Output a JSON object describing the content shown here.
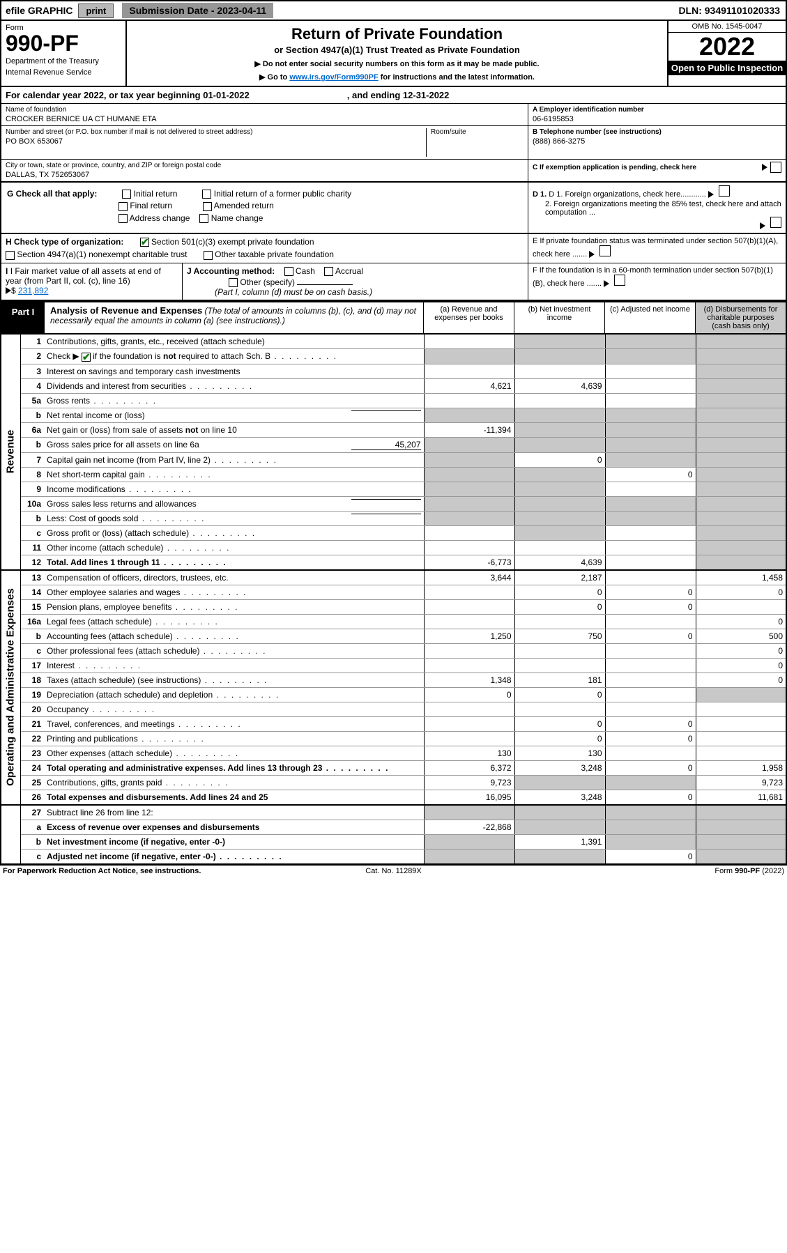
{
  "topbar": {
    "efile": "efile GRAPHIC",
    "print": "print",
    "subdate_label": "Submission Date - 2023-04-11",
    "dln": "DLN: 93491101020333"
  },
  "header": {
    "form_label": "Form",
    "form_num": "990-PF",
    "dept1": "Department of the Treasury",
    "dept2": "Internal Revenue Service",
    "title": "Return of Private Foundation",
    "subtitle": "or Section 4947(a)(1) Trust Treated as Private Foundation",
    "instr1": "▶ Do not enter social security numbers on this form as it may be made public.",
    "instr2_pre": "▶ Go to ",
    "instr2_link": "www.irs.gov/Form990PF",
    "instr2_post": " for instructions and the latest information.",
    "omb": "OMB No. 1545-0047",
    "year": "2022",
    "open": "Open to Public Inspection"
  },
  "calendar": {
    "text1": "For calendar year 2022, or tax year beginning 01-01-2022",
    "text2": ", and ending 12-31-2022"
  },
  "info": {
    "name_lbl": "Name of foundation",
    "name": "CROCKER BERNICE UA CT HUMANE ETA",
    "addr_lbl": "Number and street (or P.O. box number if mail is not delivered to street address)",
    "addr": "PO BOX 653067",
    "room_lbl": "Room/suite",
    "city_lbl": "City or town, state or province, country, and ZIP or foreign postal code",
    "city": "DALLAS, TX  752653067",
    "a_lbl": "A Employer identification number",
    "a_val": "06-6195853",
    "b_lbl": "B Telephone number (see instructions)",
    "b_val": "(888) 866-3275",
    "c_lbl": "C If exemption application is pending, check here"
  },
  "checks": {
    "g_lbl": "G Check all that apply:",
    "g_initial": "Initial return",
    "g_initial_former": "Initial return of a former public charity",
    "g_final": "Final return",
    "g_amended": "Amended return",
    "g_addr": "Address change",
    "g_name": "Name change",
    "h_lbl": "H Check type of organization:",
    "h_501c3": "Section 501(c)(3) exempt private foundation",
    "h_4947": "Section 4947(a)(1) nonexempt charitable trust",
    "h_other": "Other taxable private foundation",
    "i_lbl": "I Fair market value of all assets at end of year (from Part II, col. (c), line 16)",
    "i_val": "231,892",
    "j_lbl": "J Accounting method:",
    "j_cash": "Cash",
    "j_accrual": "Accrual",
    "j_other": "Other (specify)",
    "j_note": "(Part I, column (d) must be on cash basis.)",
    "d1": "D 1. Foreign organizations, check here............",
    "d2": "2. Foreign organizations meeting the 85% test, check here and attach computation ...",
    "e": "E  If private foundation status was terminated under section 507(b)(1)(A), check here .......",
    "f": "F  If the foundation is in a 60-month termination under section 507(b)(1)(B), check here .......",
    "arrow": "▶"
  },
  "part1": {
    "tag": "Part I",
    "title": "Analysis of Revenue and Expenses",
    "note": " (The total of amounts in columns (b), (c), and (d) may not necessarily equal the amounts in column (a) (see instructions).)",
    "col_a": "(a)   Revenue and expenses per books",
    "col_b": "(b)   Net investment income",
    "col_c": "(c)   Adjusted net income",
    "col_d": "(d)   Disbursements for charitable purposes (cash basis only)"
  },
  "sections": {
    "revenue": "Revenue",
    "opex": "Operating and Administrative Expenses"
  },
  "rows": [
    {
      "n": "1",
      "d": "Contributions, gifts, grants, etc., received (attach schedule)",
      "a": "",
      "b": "shade",
      "c": "shade",
      "dd": "shade"
    },
    {
      "n": "2",
      "d": "Check ▶ ☑ if the foundation is not required to attach Sch. B",
      "a": "shade",
      "b": "shade",
      "c": "shade",
      "dd": "shade",
      "dots": true
    },
    {
      "n": "3",
      "d": "Interest on savings and temporary cash investments",
      "a": "",
      "b": "",
      "c": "",
      "dd": "shade"
    },
    {
      "n": "4",
      "d": "Dividends and interest from securities",
      "a": "4,621",
      "b": "4,639",
      "c": "",
      "dd": "shade",
      "dots": true
    },
    {
      "n": "5a",
      "d": "Gross rents",
      "a": "",
      "b": "",
      "c": "",
      "dd": "shade",
      "dots": true
    },
    {
      "n": "b",
      "d": "Net rental income or (loss)",
      "a": "shade",
      "b": "shade",
      "c": "shade",
      "dd": "shade",
      "inline": ""
    },
    {
      "n": "6a",
      "d": "Net gain or (loss) from sale of assets not on line 10",
      "a": "-11,394",
      "b": "shade",
      "c": "shade",
      "dd": "shade"
    },
    {
      "n": "b",
      "d": "Gross sales price for all assets on line 6a",
      "a": "shade",
      "b": "shade",
      "c": "shade",
      "dd": "shade",
      "inline": "45,207"
    },
    {
      "n": "7",
      "d": "Capital gain net income (from Part IV, line 2)",
      "a": "shade",
      "b": "0",
      "c": "shade",
      "dd": "shade",
      "dots": true
    },
    {
      "n": "8",
      "d": "Net short-term capital gain",
      "a": "shade",
      "b": "shade",
      "c": "0",
      "dd": "shade",
      "dots": true
    },
    {
      "n": "9",
      "d": "Income modifications",
      "a": "shade",
      "b": "shade",
      "c": "",
      "dd": "shade",
      "dots": true
    },
    {
      "n": "10a",
      "d": "Gross sales less returns and allowances",
      "a": "shade",
      "b": "shade",
      "c": "shade",
      "dd": "shade",
      "inline": ""
    },
    {
      "n": "b",
      "d": "Less: Cost of goods sold",
      "a": "shade",
      "b": "shade",
      "c": "shade",
      "dd": "shade",
      "inline": "",
      "dots": true
    },
    {
      "n": "c",
      "d": "Gross profit or (loss) (attach schedule)",
      "a": "",
      "b": "shade",
      "c": "",
      "dd": "shade",
      "dots": true
    },
    {
      "n": "11",
      "d": "Other income (attach schedule)",
      "a": "",
      "b": "",
      "c": "",
      "dd": "shade",
      "dots": true
    },
    {
      "n": "12",
      "d": "Total. Add lines 1 through 11",
      "a": "-6,773",
      "b": "4,639",
      "c": "",
      "dd": "shade",
      "bold": true,
      "dots": true
    }
  ],
  "rows2": [
    {
      "n": "13",
      "d": "Compensation of officers, directors, trustees, etc.",
      "a": "3,644",
      "b": "2,187",
      "c": "",
      "dd": "1,458"
    },
    {
      "n": "14",
      "d": "Other employee salaries and wages",
      "a": "",
      "b": "0",
      "c": "0",
      "dd": "0",
      "dots": true
    },
    {
      "n": "15",
      "d": "Pension plans, employee benefits",
      "a": "",
      "b": "0",
      "c": "0",
      "dd": "",
      "dots": true
    },
    {
      "n": "16a",
      "d": "Legal fees (attach schedule)",
      "a": "",
      "b": "",
      "c": "",
      "dd": "0",
      "dots": true
    },
    {
      "n": "b",
      "d": "Accounting fees (attach schedule)",
      "a": "1,250",
      "b": "750",
      "c": "0",
      "dd": "500",
      "dots": true
    },
    {
      "n": "c",
      "d": "Other professional fees (attach schedule)",
      "a": "",
      "b": "",
      "c": "",
      "dd": "0",
      "dots": true
    },
    {
      "n": "17",
      "d": "Interest",
      "a": "",
      "b": "",
      "c": "",
      "dd": "0",
      "dots": true
    },
    {
      "n": "18",
      "d": "Taxes (attach schedule) (see instructions)",
      "a": "1,348",
      "b": "181",
      "c": "",
      "dd": "0",
      "dots": true
    },
    {
      "n": "19",
      "d": "Depreciation (attach schedule) and depletion",
      "a": "0",
      "b": "0",
      "c": "",
      "dd": "shade",
      "dots": true
    },
    {
      "n": "20",
      "d": "Occupancy",
      "a": "",
      "b": "",
      "c": "",
      "dd": "",
      "dots": true
    },
    {
      "n": "21",
      "d": "Travel, conferences, and meetings",
      "a": "",
      "b": "0",
      "c": "0",
      "dd": "",
      "dots": true
    },
    {
      "n": "22",
      "d": "Printing and publications",
      "a": "",
      "b": "0",
      "c": "0",
      "dd": "",
      "dots": true
    },
    {
      "n": "23",
      "d": "Other expenses (attach schedule)",
      "a": "130",
      "b": "130",
      "c": "",
      "dd": "",
      "dots": true
    },
    {
      "n": "24",
      "d": "Total operating and administrative expenses. Add lines 13 through 23",
      "a": "6,372",
      "b": "3,248",
      "c": "0",
      "dd": "1,958",
      "bold": true,
      "dots": true
    },
    {
      "n": "25",
      "d": "Contributions, gifts, grants paid",
      "a": "9,723",
      "b": "shade",
      "c": "shade",
      "dd": "9,723",
      "dots": true
    },
    {
      "n": "26",
      "d": "Total expenses and disbursements. Add lines 24 and 25",
      "a": "16,095",
      "b": "3,248",
      "c": "0",
      "dd": "11,681",
      "bold": true
    }
  ],
  "rows3": [
    {
      "n": "27",
      "d": "Subtract line 26 from line 12:",
      "a": "shade",
      "b": "shade",
      "c": "shade",
      "dd": "shade"
    },
    {
      "n": "a",
      "d": "Excess of revenue over expenses and disbursements",
      "a": "-22,868",
      "b": "shade",
      "c": "shade",
      "dd": "shade",
      "bold": true
    },
    {
      "n": "b",
      "d": "Net investment income (if negative, enter -0-)",
      "a": "shade",
      "b": "1,391",
      "c": "shade",
      "dd": "shade",
      "bold": true
    },
    {
      "n": "c",
      "d": "Adjusted net income (if negative, enter -0-)",
      "a": "shade",
      "b": "shade",
      "c": "0",
      "dd": "shade",
      "bold": true,
      "dots": true
    }
  ],
  "footer": {
    "left": "For Paperwork Reduction Act Notice, see instructions.",
    "mid": "Cat. No. 11289X",
    "right": "Form 990-PF (2022)"
  }
}
